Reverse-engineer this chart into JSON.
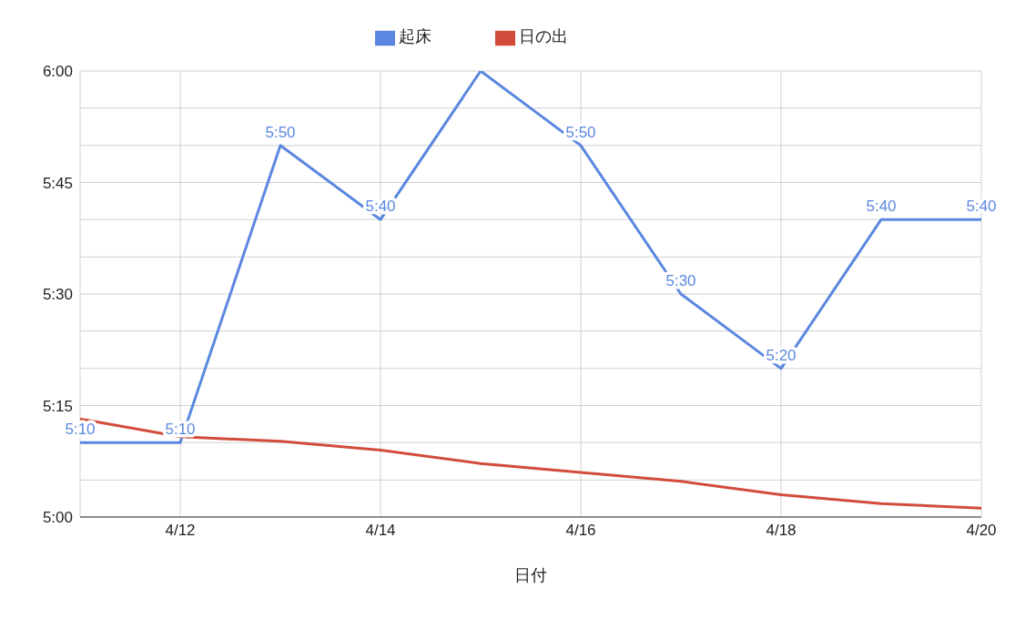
{
  "chart_data": {
    "type": "line",
    "xlabel": "日付",
    "x": [
      "--04-11",
      "--04-12",
      "--04-13",
      "--04-14",
      "--04-15",
      "--04-16",
      "--04-17",
      "--04-18",
      "--04-19",
      "--04-20"
    ],
    "series": [
      {
        "name": "起床",
        "color": "#5b87e0",
        "values": [
          5.167,
          5.167,
          5.833,
          5.667,
          6,
          5.833,
          5.5,
          5.333,
          5.667,
          5.667
        ],
        "value_labels": [
          "5:10",
          "5:10",
          "5:50",
          "5:40",
          null,
          "5:50",
          "5:30",
          "5:20",
          "5:40",
          "5:40"
        ]
      },
      {
        "name": "日の出",
        "color": "#d24c3c",
        "values": [
          5.22,
          5.18,
          5.17,
          5.15,
          5.12,
          5.1,
          5.08,
          5.05,
          5.03,
          5.02
        ]
      }
    ],
    "xlim": [
      "--04-11",
      "--04-20"
    ],
    "xticks": [
      {
        "value": "--04-12",
        "label": "4/12"
      },
      {
        "value": "--04-14",
        "label": "4/14"
      },
      {
        "value": "--04-16",
        "label": "4/16"
      },
      {
        "value": "--04-18",
        "label": "4/18"
      },
      {
        "value": "--04-20",
        "label": "4/20"
      }
    ],
    "ylim": [
      5,
      6
    ],
    "yticks": [
      {
        "value": 5,
        "label": "5:00"
      },
      {
        "value": 5.083,
        "label": null
      },
      {
        "value": 5.167,
        "label": null
      },
      {
        "value": 5.25,
        "label": "5:15"
      },
      {
        "value": 5.333,
        "label": null
      },
      {
        "value": 5.417,
        "label": null
      },
      {
        "value": 5.5,
        "label": "5:30"
      },
      {
        "value": 5.583,
        "label": null
      },
      {
        "value": 5.667,
        "label": null
      },
      {
        "value": 5.75,
        "label": "5:45"
      },
      {
        "value": 5.833,
        "label": null
      },
      {
        "value": 5.917,
        "label": null
      },
      {
        "value": 6,
        "label": "6:00"
      }
    ],
    "grid": true,
    "legend": "top",
    "marker": "none",
    "line_style": "solid"
  }
}
